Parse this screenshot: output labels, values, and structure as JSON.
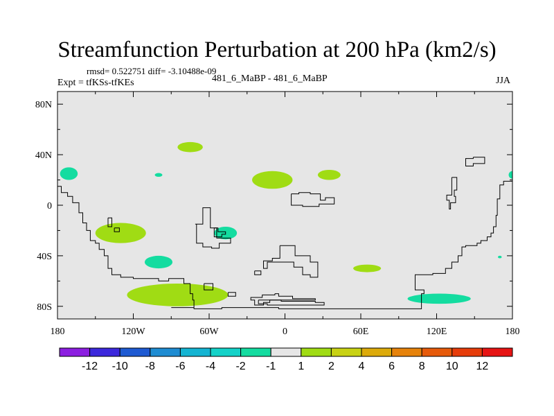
{
  "title": "Streamfunction Perturbation at 200 hPa (km2/s)",
  "rmsd_text": "rmsd= 0.522751 diff= -3.10488e-09",
  "experiment_text": "Expt = tfKSs-tfKEs",
  "case_text": "481_6_MaBP - 481_6_MaBP",
  "season": "JJA",
  "chart_data": {
    "type": "contour_map",
    "projection": "cylindrical_equidistant",
    "xlim": [
      -180,
      180
    ],
    "ylim": [
      -90,
      90
    ],
    "x_ticks": [
      {
        "value": -180,
        "label": "180"
      },
      {
        "value": -120,
        "label": "120W"
      },
      {
        "value": -60,
        "label": "60W"
      },
      {
        "value": 0,
        "label": "0"
      },
      {
        "value": 60,
        "label": "60E"
      },
      {
        "value": 120,
        "label": "120E"
      },
      {
        "value": 180,
        "label": "180"
      }
    ],
    "y_ticks": [
      {
        "value": 80,
        "label": "80N"
      },
      {
        "value": 40,
        "label": "40N"
      },
      {
        "value": 0,
        "label": "0"
      },
      {
        "value": -40,
        "label": "40S"
      },
      {
        "value": -80,
        "label": "80S"
      }
    ],
    "background_fill": "#e6e6e6",
    "colorbar": {
      "levels": [
        -12,
        -10,
        -8,
        -6,
        -4,
        -2,
        -1,
        1,
        2,
        4,
        6,
        8,
        10,
        12
      ],
      "level_labels": [
        "-12",
        "-10",
        "-8",
        "-6",
        "-4",
        "-2",
        "-1",
        "1",
        "2",
        "4",
        "6",
        "8",
        "10",
        "12"
      ],
      "colors": [
        "#8c1ee0",
        "#3c28dc",
        "#1e5ad2",
        "#1e8cd2",
        "#14b4d2",
        "#14d2c8",
        "#14dca0",
        "#e6e6e6",
        "#a0dc14",
        "#c8d214",
        "#dcaa0a",
        "#e6820a",
        "#e65a0a",
        "#e63c0a",
        "#e61414"
      ]
    },
    "anomaly_blobs": [
      {
        "lon": -171,
        "lat": 25,
        "dlon": 7,
        "dlat": 5,
        "color": "#14dca0",
        "sign": "negative"
      },
      {
        "lon": -75,
        "lat": 46,
        "dlon": 10,
        "dlat": 4,
        "color": "#a0dc14",
        "sign": "positive"
      },
      {
        "lon": -100,
        "lat": 24,
        "dlon": 3,
        "dlat": 1.5,
        "color": "#14dca0",
        "sign": "negative"
      },
      {
        "lon": -10,
        "lat": 20,
        "dlon": 16,
        "dlat": 7,
        "color": "#a0dc14",
        "sign": "positive"
      },
      {
        "lon": 35,
        "lat": 24,
        "dlon": 9,
        "dlat": 4,
        "color": "#a0dc14",
        "sign": "positive"
      },
      {
        "lon": 180,
        "lat": 24,
        "dlon": 3,
        "dlat": 3,
        "color": "#14dca0",
        "sign": "negative"
      },
      {
        "lon": -130,
        "lat": -22,
        "dlon": 20,
        "dlat": 8,
        "color": "#a0dc14",
        "sign": "positive"
      },
      {
        "lon": -47,
        "lat": -22,
        "dlon": 9,
        "dlat": 5,
        "color": "#14dca0",
        "sign": "negative"
      },
      {
        "lon": -100,
        "lat": -45,
        "dlon": 11,
        "dlat": 5,
        "color": "#14dca0",
        "sign": "negative"
      },
      {
        "lon": 65,
        "lat": -50,
        "dlon": 11,
        "dlat": 3,
        "color": "#a0dc14",
        "sign": "positive"
      },
      {
        "lon": 170,
        "lat": -41,
        "dlon": 1.5,
        "dlat": 1,
        "color": "#14dca0",
        "sign": "negative"
      },
      {
        "lon": -85,
        "lat": -71,
        "dlon": 40,
        "dlat": 9,
        "color": "#a0dc14",
        "sign": "positive"
      },
      {
        "lon": 122,
        "lat": -74,
        "dlon": 25,
        "dlat": 4,
        "color": "#14dca0",
        "sign": "negative"
      }
    ],
    "coastlines": [
      {
        "name": "west-coast",
        "points": [
          [
            -180,
            15
          ],
          [
            -177,
            15
          ],
          [
            -177,
            10
          ],
          [
            -172,
            10
          ],
          [
            -172,
            7
          ],
          [
            -168,
            7
          ],
          [
            -168,
            2
          ],
          [
            -163,
            2
          ],
          [
            -163,
            -6
          ],
          [
            -160,
            -6
          ],
          [
            -160,
            -14
          ],
          [
            -157,
            -14
          ],
          [
            -157,
            -20
          ],
          [
            -154,
            -20
          ],
          [
            -154,
            -28
          ],
          [
            -150,
            -28
          ],
          [
            -150,
            -30
          ],
          [
            -147,
            -30
          ],
          [
            -147,
            -35
          ],
          [
            -143,
            -35
          ],
          [
            -143,
            -40
          ],
          [
            -140,
            -40
          ],
          [
            -140,
            -50
          ],
          [
            -137,
            -50
          ],
          [
            -137,
            -55
          ],
          [
            -130,
            -55
          ],
          [
            -130,
            -57
          ],
          [
            -120,
            -57
          ],
          [
            -120,
            -58
          ],
          [
            -100,
            -58
          ],
          [
            -100,
            -60
          ],
          [
            -92,
            -60
          ],
          [
            -92,
            -58
          ],
          [
            -80,
            -58
          ],
          [
            -80,
            -62
          ],
          [
            -75,
            -62
          ],
          [
            -75,
            -70
          ],
          [
            -73,
            -70
          ],
          [
            -73,
            -75
          ],
          [
            -72,
            -75
          ],
          [
            -72,
            -81
          ],
          [
            -90,
            -81
          ]
        ]
      },
      {
        "name": "antarctica-edge",
        "points": [
          [
            -72,
            -81
          ],
          [
            -72,
            -82
          ],
          [
            -50,
            -82
          ],
          [
            -50,
            -81
          ],
          [
            -30,
            -81
          ],
          [
            -30,
            -81
          ],
          [
            -5,
            -81
          ],
          [
            -5,
            -82
          ],
          [
            0,
            -82
          ],
          [
            108,
            -82
          ],
          [
            108,
            -81
          ]
        ]
      },
      {
        "name": "east-coast",
        "points": [
          [
            108,
            -81
          ],
          [
            108,
            -70
          ],
          [
            110,
            -70
          ],
          [
            110,
            -67
          ],
          [
            103,
            -67
          ],
          [
            103,
            -55
          ],
          [
            117,
            -55
          ],
          [
            117,
            -54
          ],
          [
            127,
            -54
          ],
          [
            127,
            -50
          ],
          [
            132,
            -50
          ],
          [
            132,
            -45
          ],
          [
            137,
            -45
          ],
          [
            137,
            -40
          ],
          [
            140,
            -40
          ],
          [
            140,
            -33
          ],
          [
            143,
            -33
          ],
          [
            143,
            -32
          ],
          [
            152,
            -32
          ],
          [
            152,
            -30
          ],
          [
            155,
            -30
          ],
          [
            155,
            -28
          ],
          [
            160,
            -28
          ],
          [
            160,
            -25
          ],
          [
            163,
            -25
          ],
          [
            163,
            -22
          ],
          [
            165,
            -22
          ],
          [
            165,
            -17
          ],
          [
            167,
            -17
          ],
          [
            167,
            -8
          ],
          [
            168,
            -8
          ],
          [
            168,
            5
          ],
          [
            170,
            5
          ],
          [
            170,
            16
          ],
          [
            173,
            16
          ],
          [
            173,
            19
          ],
          [
            180,
            19
          ]
        ]
      },
      {
        "name": "island-a",
        "points": [
          [
            -71,
            -15
          ],
          [
            -65,
            -15
          ],
          [
            -65,
            -2
          ],
          [
            -59,
            -2
          ],
          [
            -59,
            -18
          ],
          [
            -54,
            -18
          ],
          [
            -54,
            -26
          ],
          [
            -43,
            -26
          ],
          [
            -43,
            -30
          ],
          [
            -52,
            -30
          ],
          [
            -52,
            -34
          ],
          [
            -58,
            -34
          ],
          [
            -58,
            -33
          ],
          [
            -65,
            -33
          ],
          [
            -65,
            -30
          ],
          [
            -70,
            -30
          ],
          [
            -70,
            -15
          ],
          [
            -71,
            -15
          ]
        ]
      },
      {
        "name": "island-b",
        "points": [
          [
            -56,
            -18
          ],
          [
            -53,
            -18
          ],
          [
            -53,
            -21
          ],
          [
            -47,
            -21
          ],
          [
            -47,
            -23
          ],
          [
            -50,
            -23
          ],
          [
            -50,
            -25
          ],
          [
            -56,
            -25
          ],
          [
            -56,
            -18
          ]
        ]
      },
      {
        "name": "island-c",
        "points": [
          [
            -140,
            -10
          ],
          [
            -137,
            -10
          ],
          [
            -137,
            -17
          ],
          [
            -140,
            -17
          ],
          [
            -140,
            -10
          ]
        ]
      },
      {
        "name": "island-d",
        "points": [
          [
            -135,
            -18
          ],
          [
            -131,
            -18
          ],
          [
            -131,
            -21
          ],
          [
            -135,
            -21
          ],
          [
            -135,
            -18
          ]
        ]
      },
      {
        "name": "island-e",
        "points": [
          [
            -64,
            -62
          ],
          [
            -57,
            -62
          ],
          [
            -57,
            -67
          ],
          [
            -64,
            -67
          ],
          [
            -64,
            -62
          ]
        ]
      },
      {
        "name": "island-f",
        "points": [
          [
            -45,
            -69
          ],
          [
            -39,
            -69
          ],
          [
            -39,
            -72
          ],
          [
            -45,
            -72
          ],
          [
            -45,
            -69
          ]
        ]
      },
      {
        "name": "island-g",
        "points": [
          [
            -4,
            -32
          ],
          [
            8,
            -32
          ],
          [
            8,
            -40
          ],
          [
            20,
            -40
          ],
          [
            20,
            -45
          ],
          [
            26,
            -45
          ],
          [
            26,
            -57
          ],
          [
            20,
            -57
          ],
          [
            20,
            -55
          ],
          [
            14,
            -55
          ],
          [
            14,
            -49
          ],
          [
            7,
            -49
          ],
          [
            7,
            -45
          ],
          [
            -14,
            -45
          ],
          [
            -14,
            -50
          ],
          [
            -17,
            -50
          ],
          [
            -17,
            -45
          ],
          [
            -17,
            -44
          ],
          [
            -10,
            -44
          ],
          [
            -10,
            -42
          ],
          [
            -4,
            -42
          ],
          [
            -4,
            -32
          ]
        ]
      },
      {
        "name": "island-h",
        "points": [
          [
            -24,
            -52
          ],
          [
            -19,
            -52
          ],
          [
            -19,
            -55
          ],
          [
            -24,
            -55
          ],
          [
            -24,
            -52
          ]
        ]
      },
      {
        "name": "ice-shelf",
        "points": [
          [
            -8,
            -70
          ],
          [
            -5,
            -70
          ],
          [
            -5,
            -72
          ],
          [
            6,
            -72
          ],
          [
            6,
            -74
          ],
          [
            24,
            -74
          ],
          [
            24,
            -75
          ],
          [
            -12,
            -75
          ],
          [
            -12,
            -77
          ],
          [
            -17,
            -77
          ],
          [
            -17,
            -79
          ],
          [
            -24,
            -79
          ],
          [
            -24,
            -75
          ],
          [
            -27,
            -75
          ],
          [
            -27,
            -73
          ],
          [
            -18,
            -73
          ],
          [
            -18,
            -71
          ],
          [
            -8,
            -71
          ],
          [
            -8,
            -70
          ]
        ]
      },
      {
        "name": "ice-shelf-b",
        "points": [
          [
            -21,
            -75
          ],
          [
            -3,
            -75
          ],
          [
            -3,
            -76
          ],
          [
            24,
            -76
          ],
          [
            24,
            -77
          ],
          [
            31,
            -77
          ],
          [
            31,
            -79
          ],
          [
            -14,
            -79
          ],
          [
            -14,
            -78
          ],
          [
            -21,
            -78
          ],
          [
            -21,
            -75
          ]
        ]
      },
      {
        "name": "island-i",
        "points": [
          [
            5,
            9
          ],
          [
            11,
            9
          ],
          [
            11,
            10
          ],
          [
            20,
            10
          ],
          [
            20,
            9
          ],
          [
            28,
            9
          ],
          [
            28,
            4
          ],
          [
            32,
            4
          ],
          [
            32,
            6
          ],
          [
            39,
            6
          ],
          [
            39,
            1
          ],
          [
            27,
            1
          ],
          [
            27,
            -1
          ],
          [
            14,
            -1
          ],
          [
            14,
            0
          ],
          [
            5,
            0
          ],
          [
            5,
            9
          ]
        ]
      },
      {
        "name": "island-j",
        "points": [
          [
            149,
            38
          ],
          [
            158,
            38
          ],
          [
            158,
            33
          ],
          [
            149,
            33
          ],
          [
            149,
            31
          ],
          [
            143,
            31
          ],
          [
            143,
            37
          ],
          [
            149,
            37
          ],
          [
            149,
            38
          ]
        ]
      },
      {
        "name": "island-k",
        "points": [
          [
            132,
            22
          ],
          [
            136,
            22
          ],
          [
            136,
            12
          ],
          [
            134,
            12
          ],
          [
            134,
            7
          ],
          [
            135,
            7
          ],
          [
            135,
            2
          ],
          [
            131,
            2
          ],
          [
            131,
            -3
          ],
          [
            130,
            -3
          ],
          [
            130,
            4
          ],
          [
            128,
            4
          ],
          [
            128,
            8
          ],
          [
            132,
            8
          ],
          [
            132,
            22
          ]
        ]
      }
    ]
  }
}
